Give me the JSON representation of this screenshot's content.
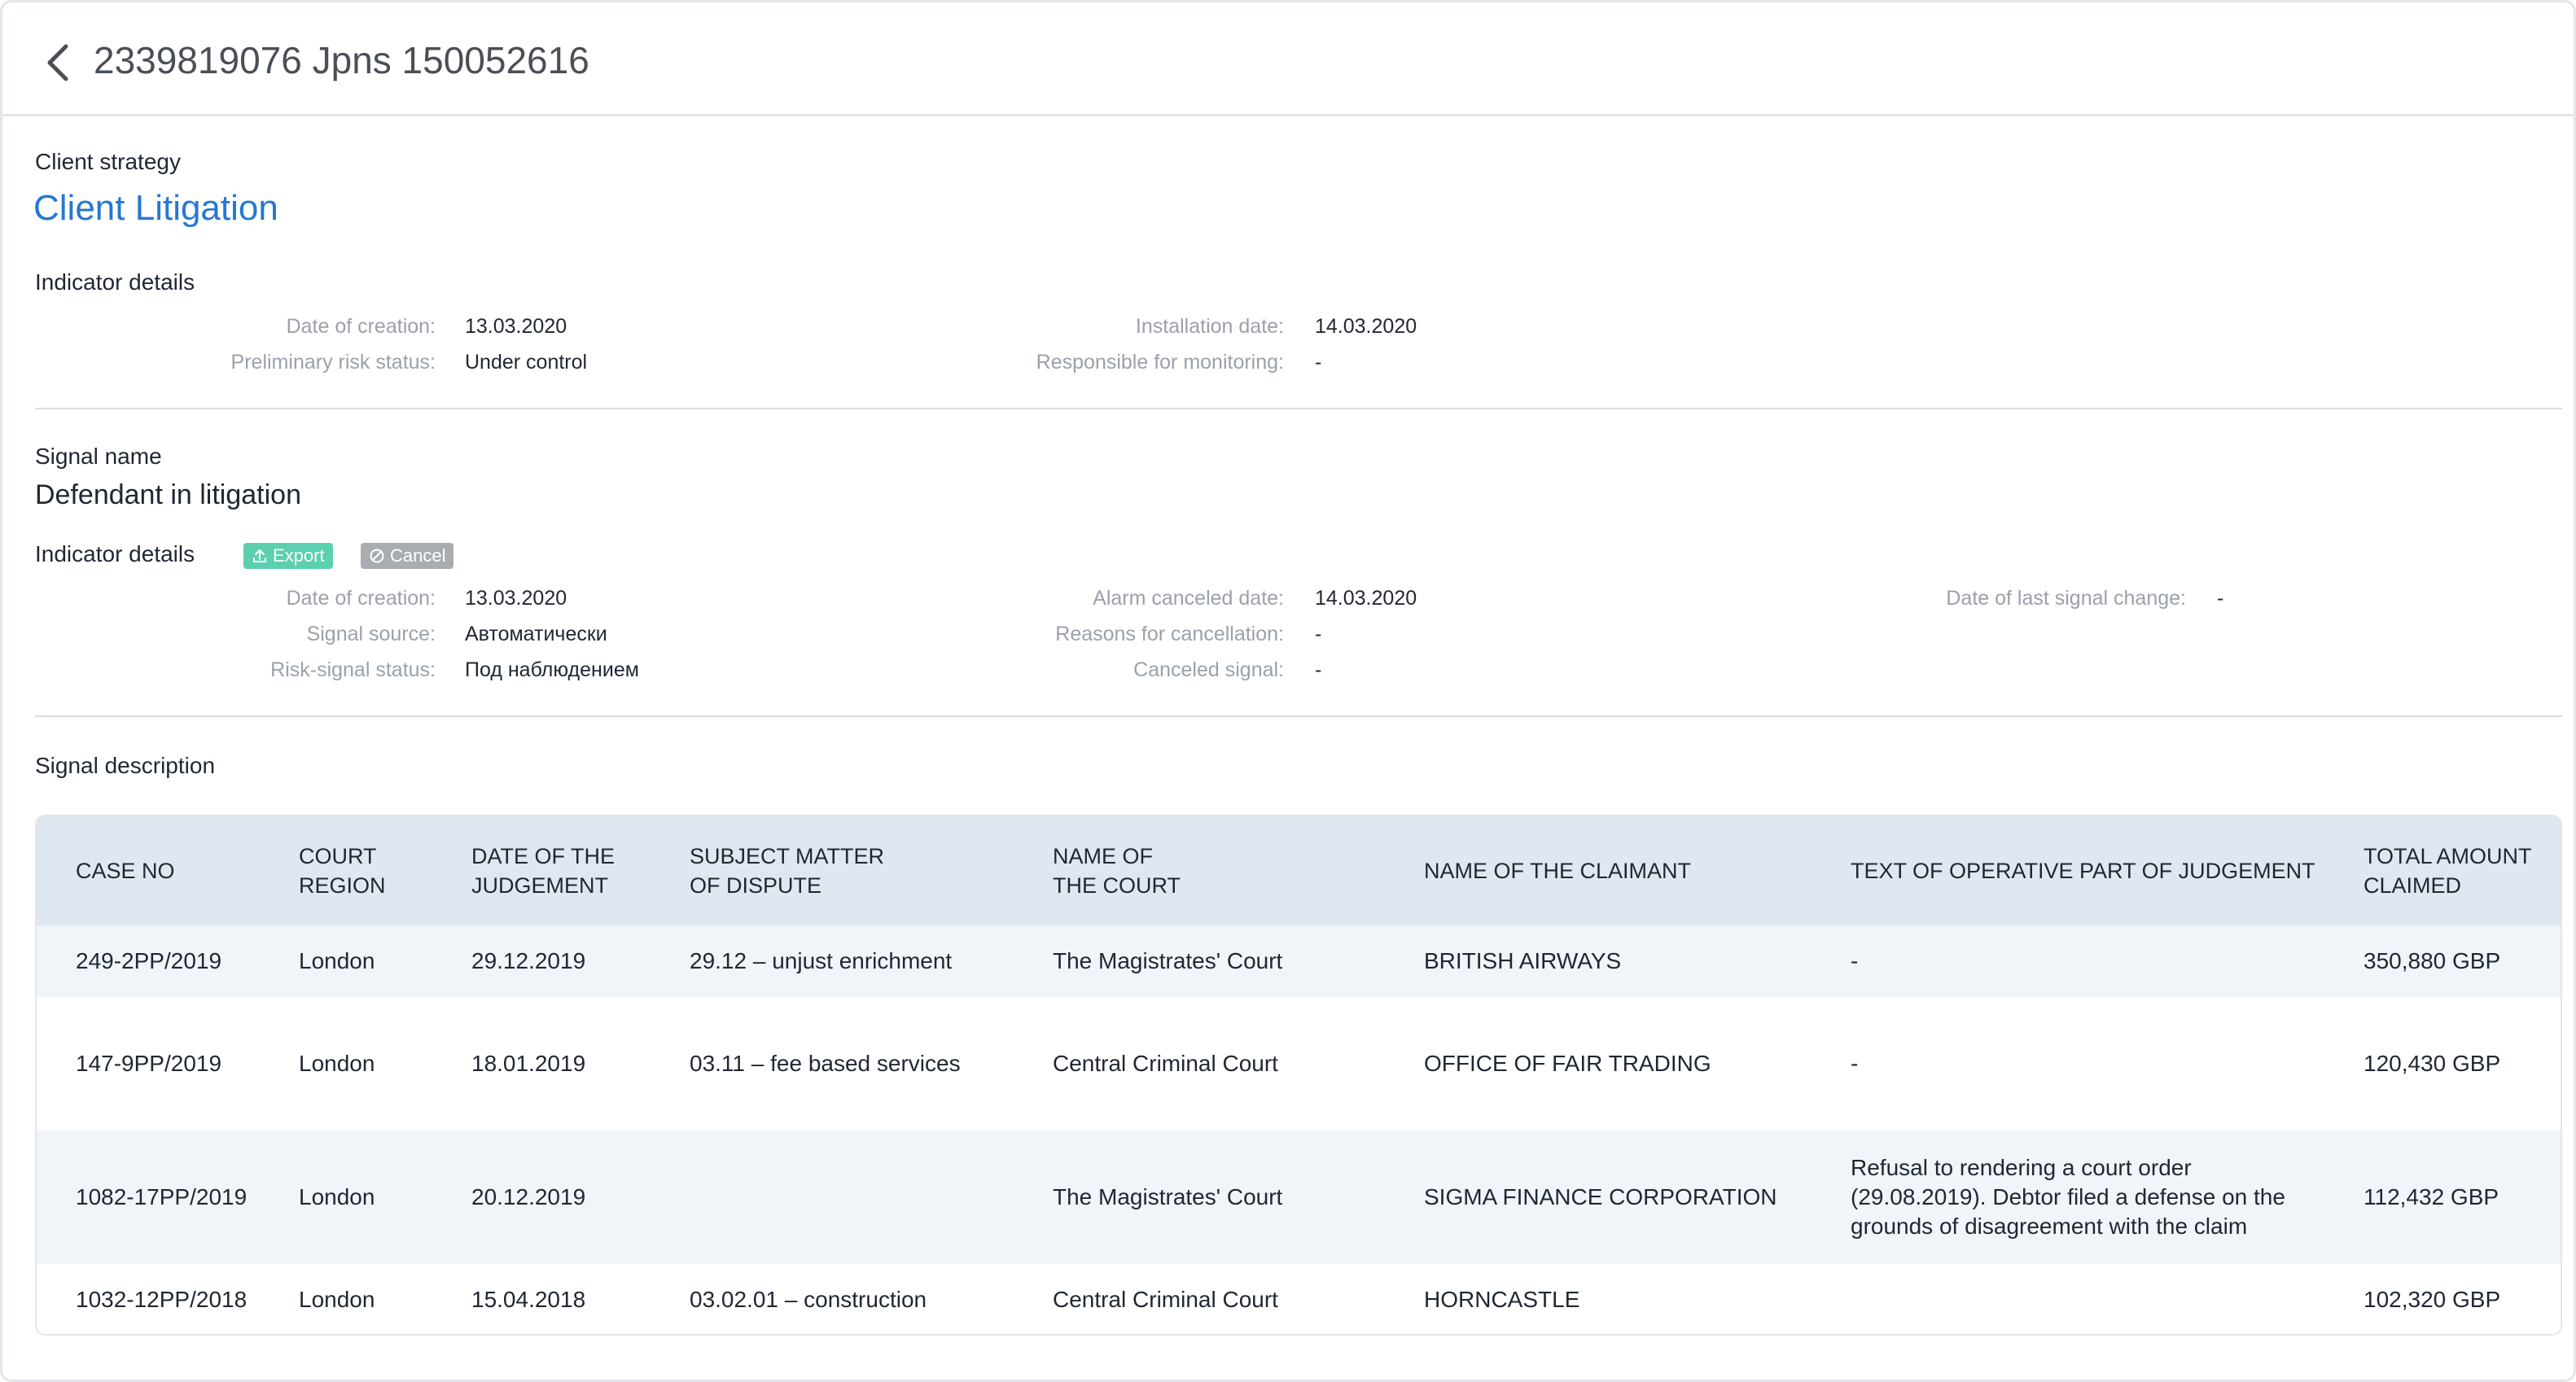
{
  "header": {
    "title": "2339819076 Jpns 150052616"
  },
  "strategy": {
    "label": "Client strategy",
    "value": "Client Litigation"
  },
  "indicator1": {
    "heading": "Indicator details",
    "date_of_creation_label": "Date of creation:",
    "date_of_creation_value": "13.03.2020",
    "prelim_risk_label": "Preliminary risk status:",
    "prelim_risk_value": "Under control",
    "installation_date_label": "Installation date:",
    "installation_date_value": "14.03.2020",
    "responsible_label": "Responsible for monitoring:",
    "responsible_value": "-"
  },
  "signal": {
    "label": "Signal name",
    "value": "Defendant in litigation"
  },
  "indicator2": {
    "heading": "Indicator details",
    "export_label": "Export",
    "cancel_label": "Cancel",
    "date_of_creation_label": "Date of creation:",
    "date_of_creation_value": "13.03.2020",
    "signal_source_label": "Signal source:",
    "signal_source_value": "Автоматически",
    "risk_signal_label": "Risk-signal status:",
    "risk_signal_value": "Под наблюдением",
    "alarm_canceled_label": "Alarm canceled date:",
    "alarm_canceled_value": "14.03.2020",
    "reasons_label": "Reasons for cancellation:",
    "reasons_value": "-",
    "canceled_signal_label": "Canceled signal:",
    "canceled_signal_value": "-",
    "last_change_label": "Date of last signal change:",
    "last_change_value": "-"
  },
  "description": {
    "label": "Signal description"
  },
  "table": {
    "columns": [
      "CASE NO",
      "COURT\nREGION",
      "DATE OF THE\nJUDGEMENT",
      "SUBJECT MATTER\nOF DISPUTE",
      "NAME OF\nTHE COURT",
      "NAME OF THE CLAIMANT",
      "TEXT OF OPERATIVE PART OF JUDGEMENT",
      "TOTAL AMOUNT\nCLAIMED"
    ],
    "rows": [
      [
        "249-2PP/2019",
        "London",
        "29.12.2019",
        "29.12 – unjust enrichment",
        "The Magistrates' Court",
        "BRITISH AIRWAYS",
        "-",
        "350,880 GBP"
      ],
      [
        "147-9PP/2019",
        "London",
        "18.01.2019",
        "03.11 – fee based services",
        "Central Criminal Court",
        "OFFICE OF FAIR TRADING",
        "-",
        "120,430 GBP"
      ],
      [
        "1082-17PP/2019",
        "London",
        "20.12.2019",
        "",
        "The Magistrates' Court",
        "SIGMA FINANCE CORPORATION",
        "Refusal to rendering a court order\n(29.08.2019). Debtor filed a defense on the\ngrounds of disagreement with the claim",
        "112,432 GBP"
      ],
      [
        "1032-12PP/2018",
        "London",
        "15.04.2018",
        "03.02.01 – construction",
        "Central Criminal Court",
        "HORNCASTLE",
        "",
        "102,320 GBP"
      ]
    ]
  },
  "colors": {
    "accent": "#2678d1",
    "export_badge": "#5ccfb0",
    "cancel_badge": "#a9adb2",
    "table_header": "#dfe8f1",
    "row_alt": "#f1f4f8"
  },
  "icons": {
    "back": "chevron-left-icon",
    "export": "upload-icon",
    "cancel": "block-icon"
  }
}
